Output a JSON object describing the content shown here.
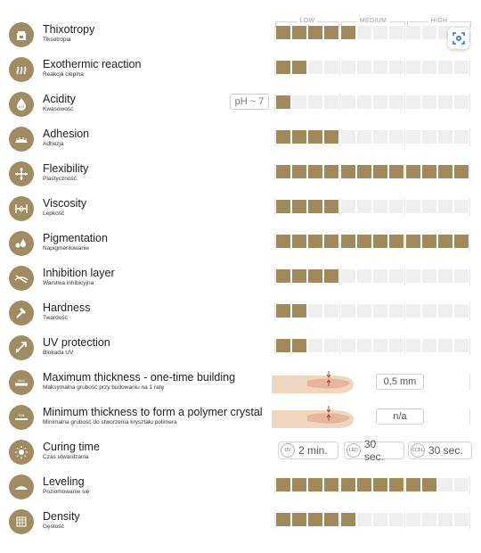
{
  "scale": {
    "low": "LOW",
    "medium": "MEDIUM",
    "high": "HIGH"
  },
  "colors": {
    "accent": "#a0895a",
    "empty": "#efefef",
    "icon_bg": "#a08c62"
  },
  "rows": [
    {
      "name": "Thixotropy",
      "sub": "Tiksotropia",
      "icon": "jar-icon",
      "level": 5
    },
    {
      "name": "Exothermic reaction",
      "sub": "Reakcja cieplna",
      "icon": "heat-waves-icon",
      "level": 2
    },
    {
      "name": "Acidity",
      "sub": "Kwasowość",
      "icon": "ph-drop-icon",
      "level": 1,
      "ph": "pH ~ 7"
    },
    {
      "name": "Adhesion",
      "sub": "Adhezja",
      "icon": "nail-adhesion-icon",
      "level": 4
    },
    {
      "name": "Flexibility",
      "sub": "Plastyczność",
      "icon": "flex-arrows-icon",
      "level": 12
    },
    {
      "name": "Viscosity",
      "sub": "Lepkość",
      "icon": "viscosity-icon",
      "level": 4
    },
    {
      "name": "Pigmentation",
      "sub": "Napigmentowanie",
      "icon": "pigment-drops-icon",
      "level": 12
    },
    {
      "name": "Inhibition layer",
      "sub": "Warstwa inhibicyjna",
      "icon": "inhibition-layer-icon",
      "level": 4
    },
    {
      "name": "Hardness",
      "sub": "Twardość",
      "icon": "hammer-icon",
      "level": 2
    },
    {
      "name": "UV protection",
      "sub": "Blokada UV",
      "icon": "uv-shield-icon",
      "level": 2
    },
    {
      "name": "Maximum thickness - one-time building",
      "sub": "Maksymalna grubość przy budowaniu na 1 ratę",
      "icon": "max-thickness-icon",
      "thickness": "0,5 mm"
    },
    {
      "name": "Minimum thickness to form a polymer crystal",
      "sub": "Minimalna grubość do stworzenia kryształu polimera",
      "icon": "min-thickness-icon",
      "thickness": "n/a"
    },
    {
      "name": "Curing time",
      "sub": "Czas utwardzania",
      "icon": "curing-lamp-icon",
      "curing": [
        {
          "lamp": "UV",
          "value": "2 min."
        },
        {
          "lamp": "LED",
          "value": "30 sec."
        },
        {
          "lamp": "CCFL",
          "value": "30 sec."
        }
      ]
    },
    {
      "name": "Leveling",
      "sub": "Poziomowanie się",
      "icon": "leveling-icon",
      "level": 10
    },
    {
      "name": "Density",
      "sub": "Gęstość",
      "icon": "density-grid-icon",
      "level": 5
    }
  ]
}
